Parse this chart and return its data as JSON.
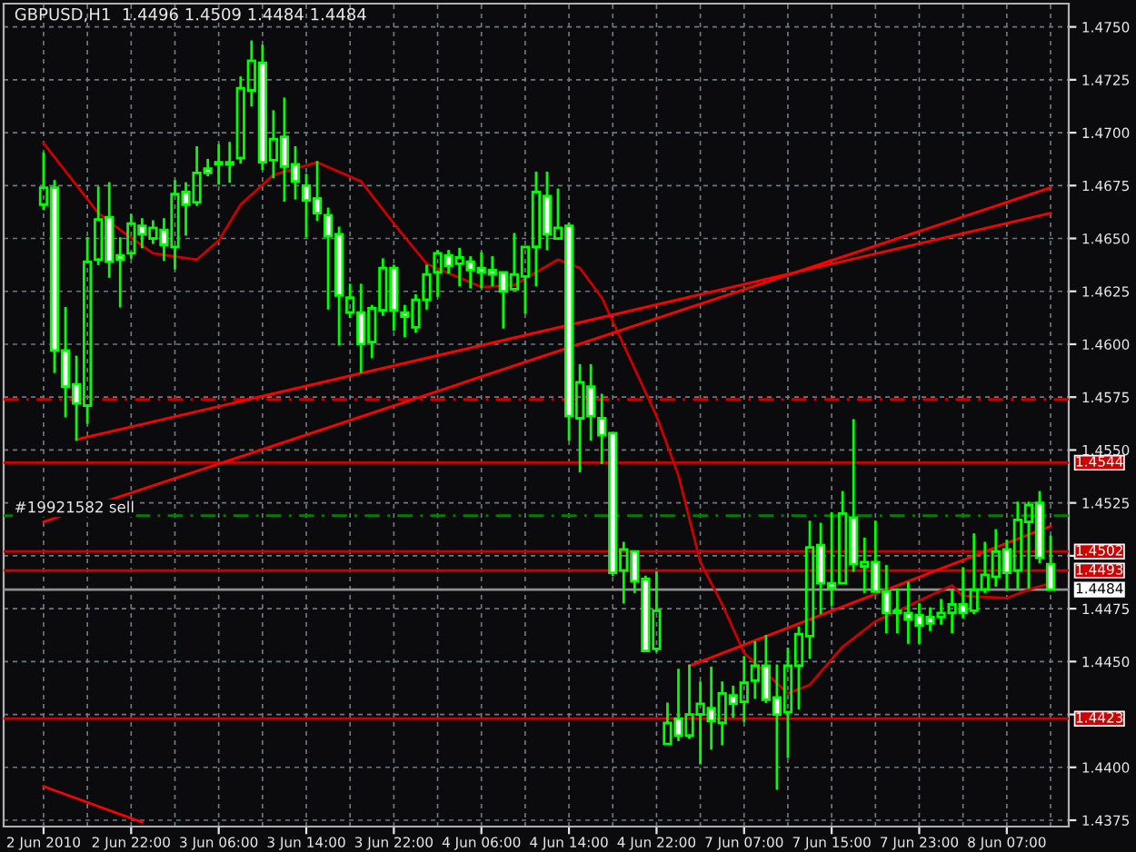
{
  "chart_data": {
    "type": "candlestick",
    "title": "GBPUSD,H1  1.4496 1.4509 1.4484 1.4484",
    "categories": [
      "2 Jun 2010",
      null,
      null,
      null,
      null,
      null,
      null,
      null,
      "2 Jun 22:00",
      null,
      null,
      null,
      null,
      null,
      null,
      null,
      "3 Jun 06:00",
      null,
      null,
      null,
      null,
      null,
      null,
      null,
      "3 Jun 14:00",
      null,
      null,
      null,
      null,
      null,
      null,
      null,
      "3 Jun 22:00",
      null,
      null,
      null,
      null,
      null,
      null,
      null,
      "4 Jun 06:00",
      null,
      null,
      null,
      null,
      null,
      null,
      null,
      "4 Jun 14:00",
      null,
      null,
      null,
      null,
      null,
      null,
      null,
      "4 Jun 22:00",
      null,
      null,
      null,
      null,
      null,
      null,
      null,
      "7 Jun 07:00",
      null,
      null,
      null,
      null,
      null,
      null,
      null,
      "7 Jun 15:00",
      null,
      null,
      null,
      null,
      null,
      null,
      null,
      "7 Jun 23:00",
      null,
      null,
      null,
      null,
      null,
      null,
      null,
      "8 Jun 07:00",
      null,
      null,
      null,
      null
    ],
    "color": "#00ff00",
    "ohlc": [
      [
        1.4666,
        1.469,
        1.4664,
        1.4674
      ],
      [
        1.4674,
        1.4677,
        1.4587,
        1.4597
      ],
      [
        1.4597,
        1.4617,
        1.4566,
        1.458
      ],
      [
        1.4581,
        1.4594,
        1.4555,
        1.4572
      ],
      [
        1.4571,
        1.465,
        1.4563,
        1.4639
      ],
      [
        1.464,
        1.4674,
        1.4638,
        1.4659
      ],
      [
        1.466,
        1.4676,
        1.4632,
        1.4639
      ],
      [
        1.4642,
        1.465,
        1.4618,
        1.464
      ],
      [
        1.4643,
        1.4661,
        1.4641,
        1.4657
      ],
      [
        1.4656,
        1.4659,
        1.4646,
        1.4652
      ],
      [
        1.465,
        1.4658,
        1.4648,
        1.4655
      ],
      [
        1.4654,
        1.4659,
        1.464,
        1.4647
      ],
      [
        1.4646,
        1.4677,
        1.4636,
        1.4671
      ],
      [
        1.4672,
        1.4676,
        1.4652,
        1.4666
      ],
      [
        1.4667,
        1.4693,
        1.4666,
        1.4681
      ],
      [
        1.4683,
        1.4687,
        1.468,
        1.4681
      ],
      [
        1.4686,
        1.4694,
        1.4676,
        1.4685
      ],
      [
        1.4685,
        1.4695,
        1.4677,
        1.4686
      ],
      [
        1.4688,
        1.4726,
        1.4686,
        1.4721
      ],
      [
        1.472,
        1.4743,
        1.4713,
        1.4734
      ],
      [
        1.4733,
        1.4741,
        1.4683,
        1.4686
      ],
      [
        1.4687,
        1.471,
        1.4679,
        1.4697
      ],
      [
        1.4698,
        1.4716,
        1.4668,
        1.4684
      ],
      [
        1.4685,
        1.4693,
        1.4669,
        1.4677
      ],
      [
        1.4675,
        1.468,
        1.4651,
        1.4668
      ],
      [
        1.4669,
        1.4686,
        1.4659,
        1.4662
      ],
      [
        1.4661,
        1.4664,
        1.4617,
        1.4651
      ],
      [
        1.4652,
        1.4655,
        1.46,
        1.4623
      ],
      [
        1.4615,
        1.4628,
        1.4613,
        1.4622
      ],
      [
        1.4615,
        1.4628,
        1.4587,
        1.46
      ],
      [
        1.4601,
        1.4618,
        1.4594,
        1.4617
      ],
      [
        1.4616,
        1.464,
        1.4614,
        1.4636
      ],
      [
        1.4636,
        1.4637,
        1.4607,
        1.4616
      ],
      [
        1.4615,
        1.4618,
        1.4604,
        1.4613
      ],
      [
        1.4608,
        1.4623,
        1.4606,
        1.4621
      ],
      [
        1.4621,
        1.4637,
        1.4617,
        1.4633
      ],
      [
        1.4634,
        1.4644,
        1.4623,
        1.4643
      ],
      [
        1.4642,
        1.4644,
        1.4634,
        1.4637
      ],
      [
        1.4638,
        1.4645,
        1.4628,
        1.4641
      ],
      [
        1.4639,
        1.4641,
        1.4627,
        1.4635
      ],
      [
        1.4636,
        1.4643,
        1.4627,
        1.4634
      ],
      [
        1.4635,
        1.4641,
        1.4628,
        1.4633
      ],
      [
        1.4634,
        1.4634,
        1.4608,
        1.4625
      ],
      [
        1.4626,
        1.4652,
        1.4626,
        1.4633
      ],
      [
        1.4632,
        1.4646,
        1.4615,
        1.4646
      ],
      [
        1.4646,
        1.4681,
        1.4628,
        1.4672
      ],
      [
        1.467,
        1.4681,
        1.4645,
        1.4652
      ],
      [
        1.465,
        1.4673,
        1.465,
        1.4655
      ],
      [
        1.4656,
        1.4657,
        1.4555,
        1.4566
      ],
      [
        1.4565,
        1.459,
        1.454,
        1.4582
      ],
      [
        1.458,
        1.459,
        1.4555,
        1.4566
      ],
      [
        1.4565,
        1.4576,
        1.4544,
        1.4557
      ],
      [
        1.4558,
        1.4558,
        1.4491,
        1.4492
      ],
      [
        1.4493,
        1.4506,
        1.4478,
        1.4503
      ],
      [
        1.4502,
        1.4502,
        1.4483,
        1.4488
      ],
      [
        1.4489,
        1.449,
        1.4455,
        1.4455
      ],
      [
        1.4456,
        1.4492,
        1.4455,
        1.4474
      ],
      [
        1.4411,
        1.443,
        1.4411,
        1.4421
      ],
      [
        1.4423,
        1.4446,
        1.4413,
        1.4415
      ],
      [
        1.4415,
        1.4448,
        1.4414,
        1.4425
      ],
      [
        1.4425,
        1.444,
        1.4402,
        1.443
      ],
      [
        1.4428,
        1.4447,
        1.4409,
        1.4422
      ],
      [
        1.4421,
        1.444,
        1.4411,
        1.4435
      ],
      [
        1.4434,
        1.4438,
        1.4424,
        1.443
      ],
      [
        1.4431,
        1.4452,
        1.4422,
        1.444
      ],
      [
        1.4441,
        1.4459,
        1.4433,
        1.4448
      ],
      [
        1.4448,
        1.4462,
        1.4431,
        1.4432
      ],
      [
        1.4433,
        1.4448,
        1.439,
        1.4425
      ],
      [
        1.4426,
        1.4456,
        1.4405,
        1.4448
      ],
      [
        1.4448,
        1.4466,
        1.4428,
        1.4463
      ],
      [
        1.4462,
        1.4516,
        1.4452,
        1.4504
      ],
      [
        1.4505,
        1.4515,
        1.4473,
        1.4487
      ],
      [
        1.4487,
        1.452,
        1.4477,
        1.4485
      ],
      [
        1.4487,
        1.453,
        1.4487,
        1.452
      ],
      [
        1.4518,
        1.4564,
        1.4493,
        1.4496
      ],
      [
        1.4495,
        1.4508,
        1.4483,
        1.4497
      ],
      [
        1.4497,
        1.4516,
        1.4483,
        1.4483
      ],
      [
        1.4483,
        1.4495,
        1.4464,
        1.4473
      ],
      [
        1.4474,
        1.4484,
        1.4464,
        1.4473
      ],
      [
        1.4473,
        1.4487,
        1.4459,
        1.447
      ],
      [
        1.4472,
        1.4477,
        1.4459,
        1.4467
      ],
      [
        1.4471,
        1.4475,
        1.4465,
        1.4468
      ],
      [
        1.4471,
        1.4479,
        1.4468,
        1.4473
      ],
      [
        1.4473,
        1.4483,
        1.4464,
        1.4477
      ],
      [
        1.4477,
        1.4494,
        1.4471,
        1.4473
      ],
      [
        1.4474,
        1.451,
        1.4473,
        1.4484
      ],
      [
        1.4484,
        1.4506,
        1.4483,
        1.4491
      ],
      [
        1.449,
        1.4512,
        1.4486,
        1.4502
      ],
      [
        1.4503,
        1.4507,
        1.4484,
        1.4492
      ],
      [
        1.4493,
        1.4525,
        1.4485,
        1.4517
      ],
      [
        1.4516,
        1.4525,
        1.4485,
        1.4524
      ],
      [
        1.4525,
        1.453,
        1.4497,
        1.4499
      ],
      [
        1.4496,
        1.4509,
        1.4484,
        1.4484
      ]
    ],
    "series": [
      {
        "type": "line",
        "color": "#cc0000",
        "values": [
          1.4695,
          null,
          null,
          null,
          null,
          1.4662,
          null,
          1.4654,
          null,
          null,
          1.4643,
          null,
          null,
          null,
          1.464,
          null,
          1.4649,
          null,
          1.4666,
          null,
          null,
          1.468,
          null,
          null,
          null,
          1.4686,
          null,
          null,
          null,
          1.4677,
          null,
          null,
          1.4657,
          null,
          null,
          1.4638,
          null,
          null,
          null,
          null,
          1.4627,
          null,
          null,
          1.4628,
          null,
          null,
          null,
          1.464,
          null,
          1.4636,
          null,
          1.4622,
          null,
          null,
          null,
          null,
          1.4566,
          null,
          1.4538,
          null,
          1.4497,
          null,
          1.4477,
          null,
          1.4454,
          null,
          null,
          null,
          1.4435,
          null,
          1.4439,
          null,
          null,
          1.4457,
          null,
          null,
          1.4469,
          null,
          null,
          null,
          null,
          null,
          null,
          1.4486,
          1.4481,
          null,
          null,
          null,
          1.448,
          null,
          1.4484,
          null,
          1.4487
        ]
      },
      {
        "type": "line",
        "color": "#ff0000",
        "values": [
          null,
          null,
          null,
          1.4555,
          null,
          null,
          null,
          null,
          null,
          null,
          null,
          null,
          null,
          null,
          null,
          null,
          null,
          null,
          null,
          null,
          null,
          null,
          null,
          null,
          null,
          null,
          null,
          null,
          null,
          null,
          null,
          null,
          null,
          null,
          null,
          null,
          null,
          null,
          null,
          null,
          null,
          null,
          null,
          null,
          null,
          null,
          null,
          null,
          null,
          null,
          null,
          null,
          null,
          null,
          null,
          null,
          null,
          null,
          null,
          null,
          null,
          null,
          null,
          null,
          null,
          null,
          null,
          null,
          null,
          null,
          null,
          null,
          null,
          null,
          null,
          null,
          null,
          null,
          null,
          null,
          null,
          null,
          null,
          null,
          null,
          null,
          null,
          null,
          null,
          null,
          null,
          null,
          1.4662
        ]
      },
      {
        "type": "line",
        "color": "#ff0000",
        "values": [
          1.4516,
          null,
          null,
          null,
          null,
          null,
          null,
          null,
          null,
          null,
          null,
          null,
          null,
          null,
          null,
          null,
          null,
          null,
          null,
          null,
          null,
          null,
          null,
          null,
          null,
          null,
          null,
          null,
          null,
          null,
          null,
          null,
          null,
          null,
          null,
          null,
          null,
          null,
          null,
          null,
          null,
          null,
          null,
          null,
          null,
          null,
          null,
          null,
          null,
          null,
          null,
          null,
          null,
          null,
          null,
          null,
          null,
          null,
          null,
          null,
          null,
          null,
          null,
          null,
          null,
          null,
          null,
          null,
          null,
          null,
          null,
          null,
          null,
          null,
          null,
          null,
          null,
          null,
          null,
          null,
          null,
          null,
          null,
          null,
          null,
          null,
          null,
          null,
          null,
          null,
          null,
          null,
          1.4674
        ]
      },
      {
        "type": "line",
        "color": "#ff0000",
        "values": [
          null,
          null,
          null,
          null,
          null,
          null,
          null,
          null,
          null,
          null,
          null,
          null,
          null,
          null,
          null,
          null,
          null,
          null,
          null,
          null,
          null,
          null,
          null,
          null,
          null,
          null,
          null,
          null,
          null,
          null,
          null,
          null,
          null,
          null,
          null,
          null,
          null,
          null,
          null,
          null,
          null,
          null,
          null,
          null,
          null,
          null,
          null,
          null,
          null,
          null,
          null,
          null,
          null,
          null,
          null,
          null,
          null,
          null,
          null,
          1.4448,
          null,
          null,
          null,
          null,
          null,
          null,
          null,
          null,
          null,
          null,
          null,
          null,
          null,
          null,
          null,
          null,
          null,
          null,
          null,
          null,
          null,
          null,
          null,
          null,
          null,
          null,
          null,
          null,
          null,
          null,
          null,
          null,
          1.4514
        ]
      },
      {
        "type": "line",
        "color": "#ff0000",
        "values": [
          1.4391,
          null,
          null,
          null,
          null,
          null,
          null,
          null,
          null,
          1.4374,
          null,
          null,
          null,
          null,
          null,
          null,
          null,
          null,
          null,
          null,
          null,
          null,
          null,
          null,
          null,
          null,
          null,
          null,
          null,
          null,
          null,
          null,
          null,
          null,
          null,
          null,
          null,
          null,
          null,
          null,
          null,
          null,
          null,
          null,
          null,
          null,
          null,
          null,
          null,
          null,
          null,
          null,
          null,
          null,
          null,
          null,
          null,
          null,
          null,
          null,
          null,
          null,
          null,
          null,
          null,
          null,
          null,
          null,
          null,
          null,
          null,
          null,
          null,
          null,
          null,
          null,
          null,
          null,
          null,
          null,
          null,
          null,
          null,
          null,
          null,
          null,
          null,
          null,
          null,
          null,
          null,
          null,
          null
        ]
      }
    ],
    "ref_lines": [
      {
        "axis": "y",
        "value": 1.4574,
        "color": "#cc0000",
        "line_style": "dashed"
      },
      {
        "axis": "y",
        "value": 1.4544,
        "label": "1.4544",
        "color": "#d00000"
      },
      {
        "axis": "y",
        "value": 1.4519,
        "label": "#19921582 sell",
        "color": "#008000",
        "line_style": "dashed"
      },
      {
        "axis": "y",
        "value": 1.4502,
        "label": "1.4502",
        "color": "#d00000"
      },
      {
        "axis": "y",
        "value": 1.4493,
        "label": "1.4493",
        "color": "#d00000"
      },
      {
        "axis": "y",
        "value": 1.4484,
        "label": "1.4484",
        "color": "#909090"
      },
      {
        "axis": "y",
        "value": 1.4423,
        "label": "1.4423",
        "color": "#d00000"
      }
    ],
    "ylim": [
      1.4372,
      1.4761
    ],
    "yticks": [
      {
        "value": 1.4375,
        "label": "1.4375"
      },
      {
        "value": 1.44,
        "label": "1.4400"
      },
      {
        "value": 1.4425,
        "label": null
      },
      {
        "value": 1.445,
        "label": "1.4450"
      },
      {
        "value": 1.4475,
        "label": "1.4475"
      },
      {
        "value": 1.45,
        "label": null
      },
      {
        "value": 1.4525,
        "label": "1.4525"
      },
      {
        "value": 1.455,
        "label": "1.4550"
      },
      {
        "value": 1.4575,
        "label": "1.4575"
      },
      {
        "value": 1.46,
        "label": "1.4600"
      },
      {
        "value": 1.4625,
        "label": "1.4625"
      },
      {
        "value": 1.465,
        "label": "1.4650"
      },
      {
        "value": 1.4675,
        "label": "1.4675"
      },
      {
        "value": 1.47,
        "label": "1.4700"
      },
      {
        "value": 1.4725,
        "label": "1.4725"
      },
      {
        "value": 1.475,
        "label": "1.4750"
      }
    ],
    "grid": true
  }
}
